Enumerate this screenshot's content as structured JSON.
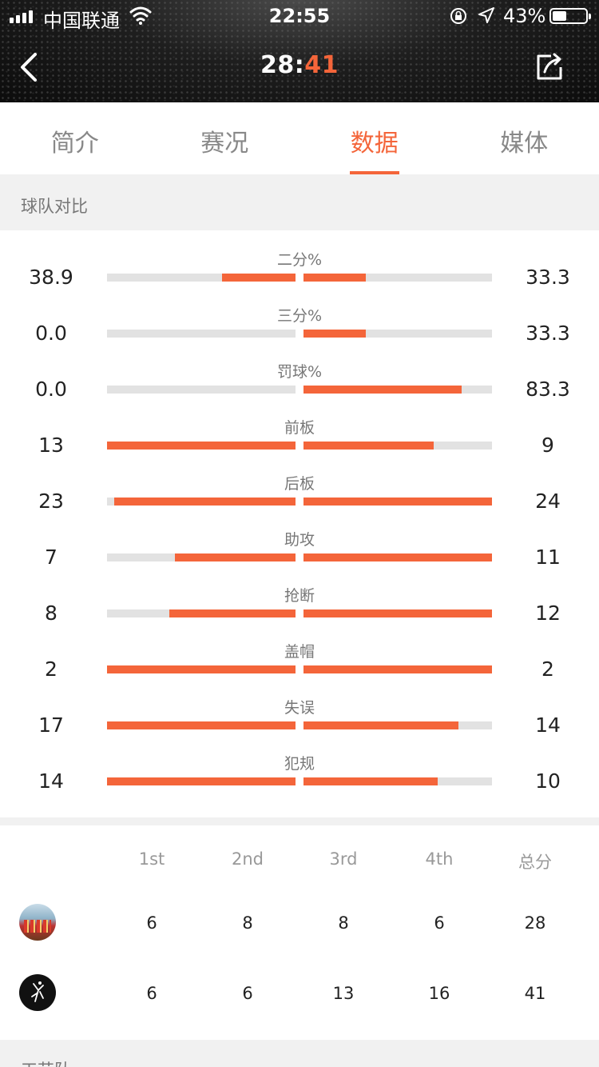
{
  "status_bar": {
    "carrier": "中国联通",
    "time": "22:55",
    "battery_percent": "43%",
    "battery_level": 0.43
  },
  "header": {
    "score_home": "28",
    "score_sep": ":",
    "score_away": "41",
    "colors": {
      "accent": "#f4653a",
      "header_bg": "#111111"
    }
  },
  "tabs": [
    {
      "label": "简介",
      "active": false
    },
    {
      "label": "赛况",
      "active": false
    },
    {
      "label": "数据",
      "active": true
    },
    {
      "label": "媒体",
      "active": false
    }
  ],
  "team_compare": {
    "title": "球队对比",
    "stats": [
      {
        "label": "二分%",
        "left": "38.9",
        "right": "33.3",
        "left_fill": 0.39,
        "right_fill": 0.33
      },
      {
        "label": "三分%",
        "left": "0.0",
        "right": "33.3",
        "left_fill": 0.0,
        "right_fill": 0.33
      },
      {
        "label": "罚球%",
        "left": "0.0",
        "right": "83.3",
        "left_fill": 0.0,
        "right_fill": 0.84
      },
      {
        "label": "前板",
        "left": "13",
        "right": "9",
        "left_fill": 1.0,
        "right_fill": 0.69
      },
      {
        "label": "后板",
        "left": "23",
        "right": "24",
        "left_fill": 0.96,
        "right_fill": 1.0
      },
      {
        "label": "助攻",
        "left": "7",
        "right": "11",
        "left_fill": 0.64,
        "right_fill": 1.0
      },
      {
        "label": "抢断",
        "left": "8",
        "right": "12",
        "left_fill": 0.67,
        "right_fill": 1.0
      },
      {
        "label": "盖帽",
        "left": "2",
        "right": "2",
        "left_fill": 1.0,
        "right_fill": 1.0
      },
      {
        "label": "失误",
        "left": "17",
        "right": "14",
        "left_fill": 1.0,
        "right_fill": 0.82
      },
      {
        "label": "犯规",
        "left": "14",
        "right": "10",
        "left_fill": 1.0,
        "right_fill": 0.71
      }
    ]
  },
  "quarter_table": {
    "headers": [
      "1st",
      "2nd",
      "3rd",
      "4th",
      "总分"
    ],
    "rows": [
      {
        "logo": "team-a-logo",
        "scores": [
          "6",
          "8",
          "8",
          "6",
          "28"
        ]
      },
      {
        "logo": "team-b-logo",
        "scores": [
          "6",
          "6",
          "13",
          "16",
          "41"
        ]
      }
    ]
  },
  "next_section": {
    "title": "工艺队"
  }
}
